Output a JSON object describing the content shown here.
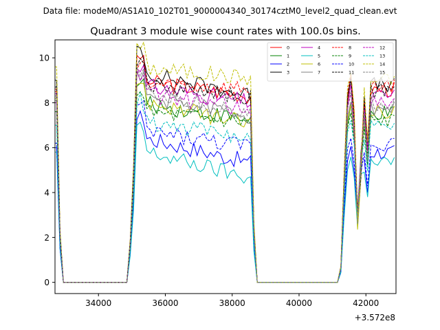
{
  "chart_data": {
    "type": "line",
    "suptitle": "Data file: modeM0/AS1A10_102T01_9000004340_30174cztM0_level2_quad_clean.evt",
    "title": "Quadrant 3 module wise count rates with 100.0s bins.",
    "xlabel": "",
    "ylabel": "",
    "x_offset_label": "+3.572e8",
    "xlim": [
      32700,
      42900
    ],
    "ylim": [
      -0.5,
      10.8
    ],
    "xticks": [
      34000,
      36000,
      38000,
      40000,
      42000
    ],
    "xtick_labels": [
      "34000",
      "36000",
      "38000",
      "40000",
      "42000"
    ],
    "yticks": [
      0,
      2,
      4,
      6,
      8,
      10
    ],
    "ytick_labels": [
      "0",
      "2",
      "4",
      "6",
      "8",
      "10"
    ],
    "grid": false,
    "legend": {
      "location": "top-right",
      "columns": 4,
      "entries": [
        "0",
        "1",
        "2",
        "3",
        "4",
        "5",
        "6",
        "7",
        "8",
        "9",
        "10",
        "11",
        "12",
        "13",
        "14",
        "15"
      ]
    },
    "time_profile": {
      "segments": [
        {
          "x_start": 32700,
          "x_end": 32950,
          "shape": "decay"
        },
        {
          "x_start": 32950,
          "x_end": 34950,
          "shape": "zero"
        },
        {
          "x_start": 34950,
          "x_end": 35150,
          "shape": "rise"
        },
        {
          "x_start": 35150,
          "x_end": 38550,
          "shape": "plateau_slow_decline"
        },
        {
          "x_start": 38550,
          "x_end": 38750,
          "shape": "fall"
        },
        {
          "x_start": 38750,
          "x_end": 41250,
          "shape": "zero"
        },
        {
          "x_start": 41250,
          "x_end": 42850,
          "shape": "spiky_recovery"
        }
      ]
    },
    "series": [
      {
        "name": "0",
        "color": "#ff0000",
        "dash": "solid",
        "start": 8.5,
        "plateau_start": 9.0,
        "plateau_end": 8.3,
        "end_level": 8.6
      },
      {
        "name": "1",
        "color": "#008000",
        "dash": "solid",
        "start": 8.0,
        "plateau_start": 8.0,
        "plateau_end": 7.2,
        "end_level": 7.5
      },
      {
        "name": "2",
        "color": "#0000ff",
        "dash": "solid",
        "start": 6.0,
        "plateau_start": 6.5,
        "plateau_end": 5.3,
        "end_level": 5.8
      },
      {
        "name": "3",
        "color": "#000000",
        "dash": "solid",
        "start": 9.0,
        "plateau_start": 9.4,
        "plateau_end": 8.3,
        "end_level": 8.8
      },
      {
        "name": "4",
        "color": "#bf00bf",
        "dash": "solid",
        "start": 8.4,
        "plateau_start": 8.8,
        "plateau_end": 8.0,
        "end_level": 8.3
      },
      {
        "name": "5",
        "color": "#00bfbf",
        "dash": "solid",
        "start": 5.8,
        "plateau_start": 5.9,
        "plateau_end": 4.6,
        "end_level": 5.3
      },
      {
        "name": "6",
        "color": "#bfbf00",
        "dash": "solid",
        "start": 8.2,
        "plateau_start": 8.1,
        "plateau_end": 7.0,
        "end_level": 7.6
      },
      {
        "name": "7",
        "color": "#808080",
        "dash": "solid",
        "start": 8.1,
        "plateau_start": 8.3,
        "plateau_end": 7.4,
        "end_level": 7.8
      },
      {
        "name": "8",
        "color": "#ff0000",
        "dash": "dashed",
        "start": 8.6,
        "plateau_start": 8.8,
        "plateau_end": 8.6,
        "end_level": 8.8
      },
      {
        "name": "9",
        "color": "#008000",
        "dash": "dashed",
        "start": 7.6,
        "plateau_start": 7.6,
        "plateau_end": 7.1,
        "end_level": 7.2
      },
      {
        "name": "10",
        "color": "#0000ff",
        "dash": "dashed",
        "start": 6.2,
        "plateau_start": 6.8,
        "plateau_end": 6.0,
        "end_level": 6.2
      },
      {
        "name": "11",
        "color": "#000000",
        "dash": "dashed",
        "start": 8.7,
        "plateau_start": 8.9,
        "plateau_end": 8.2,
        "end_level": 8.5
      },
      {
        "name": "12",
        "color": "#bf00bf",
        "dash": "dashed",
        "start": 8.0,
        "plateau_start": 8.4,
        "plateau_end": 7.7,
        "end_level": 8.0
      },
      {
        "name": "13",
        "color": "#00bfbf",
        "dash": "dashed",
        "start": 7.0,
        "plateau_start": 7.2,
        "plateau_end": 6.4,
        "end_level": 6.9
      },
      {
        "name": "14",
        "color": "#bfbf00",
        "dash": "dashed",
        "start": 9.6,
        "plateau_start": 9.6,
        "plateau_end": 9.1,
        "end_level": 9.0
      },
      {
        "name": "15",
        "color": "#808080",
        "dash": "dashed",
        "start": 8.3,
        "plateau_start": 8.5,
        "plateau_end": 7.5,
        "end_level": 8.0
      }
    ]
  }
}
